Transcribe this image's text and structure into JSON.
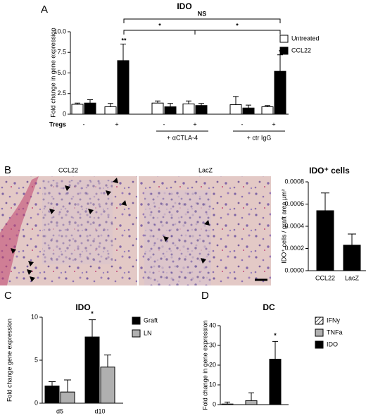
{
  "panels": [
    "A",
    "B",
    "C",
    "D"
  ],
  "images": [
    "CCL22",
    "LacZ"
  ],
  "chart_data": [
    {
      "type": "bar",
      "title": "IDO",
      "ylabel": "Fold change in gene expression",
      "xlabel": "Tregs",
      "categories": [
        "-",
        "+",
        "-",
        "+",
        "-",
        "+"
      ],
      "group_labels": [
        "+ αCTLA-4",
        "+ ctr IgG"
      ],
      "series": [
        {
          "name": "Untreated",
          "color": "#ffffff",
          "values": [
            1.2,
            0.9,
            1.35,
            1.25,
            1.15,
            0.9
          ],
          "errors": [
            0.15,
            0.4,
            0.25,
            0.35,
            1.0,
            0.15
          ]
        },
        {
          "name": "CCL22",
          "color": "#000000",
          "values": [
            1.35,
            6.5,
            0.9,
            1.05,
            0.75,
            5.2
          ],
          "errors": [
            0.4,
            2.0,
            0.4,
            0.25,
            0.35,
            2.0
          ]
        }
      ],
      "ylim": [
        0,
        10
      ],
      "yticks": [
        0,
        2.5,
        {
          "value": 5,
          "label": "5.0"
        },
        7.5,
        {
          "value": 10,
          "label": "10.0"
        }
      ],
      "annotations": [
        "**",
        "*",
        "*",
        "*",
        "NS"
      ]
    },
    {
      "type": "bar",
      "title": "IDO⁺ cells",
      "ylabel": "IDO⁺ cells / graft area µm²",
      "categories": [
        "CCL22",
        "LacZ"
      ],
      "series": [
        {
          "color": "#000000",
          "values": [
            0.00054,
            0.00023
          ],
          "errors": [
            0.00016,
            0.0001
          ]
        }
      ],
      "ylim": [
        0,
        0.0008
      ],
      "yticks": [
        {
          "value": 0,
          "label": "0.0000"
        },
        {
          "value": 0.0002,
          "label": "0.0002"
        },
        {
          "value": 0.0004,
          "label": "0.0004"
        },
        {
          "value": 0.0006,
          "label": "0.0006"
        },
        {
          "value": 0.0008,
          "label": "0.0008"
        }
      ]
    },
    {
      "type": "bar",
      "title": "IDO",
      "ylabel": "Fold change gene expression",
      "categories": [
        "d5",
        "d10"
      ],
      "series": [
        {
          "name": "Graft",
          "color": "#000000",
          "values": [
            2.0,
            7.7
          ],
          "errors": [
            0.5,
            2.0
          ]
        },
        {
          "name": "LN",
          "color": "#b0b0b0",
          "values": [
            1.3,
            4.2
          ],
          "errors": [
            1.4,
            1.4
          ]
        }
      ],
      "ylim": [
        0,
        10
      ],
      "yticks": [
        0,
        5,
        10
      ],
      "annotations": [
        "*"
      ]
    },
    {
      "type": "bar",
      "title": "DC",
      "ylabel": "Fold change in gene expression",
      "categories": [
        null
      ],
      "series": [
        {
          "name": "IFNy",
          "color": "#ffffff",
          "pattern": "hatch",
          "values": [
            0.3
          ],
          "errors": [
            1.0
          ]
        },
        {
          "name": "TNFa",
          "color": "#b0b0b0",
          "values": [
            2.0
          ],
          "errors": [
            4.0
          ]
        },
        {
          "name": "IDO",
          "color": "#000000",
          "values": [
            23
          ],
          "errors": [
            9
          ]
        }
      ],
      "ylim": [
        0,
        40
      ],
      "yticks": [
        0,
        10,
        20,
        30,
        40
      ],
      "annotations": [
        "*"
      ]
    }
  ]
}
